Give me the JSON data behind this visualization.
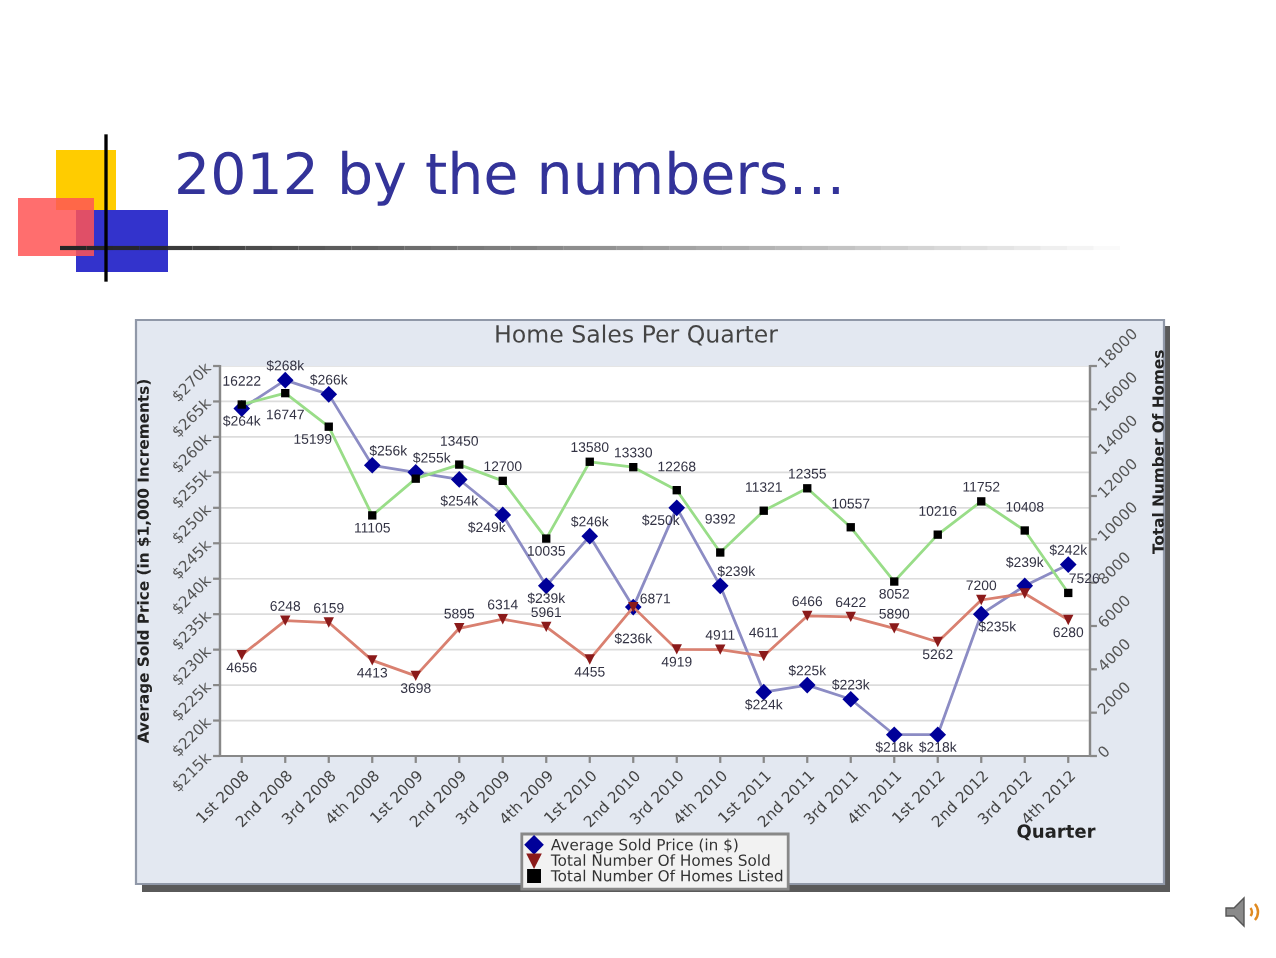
{
  "chart_data": {
    "type": "line",
    "title": "2012 by the numbers…",
    "subtitle": "Home Sales Per Quarter",
    "xlabel": "Quarter",
    "ylabel": "Average Sold Price (in $1,000 Increments)",
    "y2label": "Total Number Of Homes",
    "categories": [
      "1st 2008",
      "2nd 2008",
      "3rd 2008",
      "4th 2008",
      "1st 2009",
      "2nd 2009",
      "3rd 2009",
      "4th 2009",
      "1st 2010",
      "2nd 2010",
      "3rd 2010",
      "4th 2010",
      "1st 2011",
      "2nd 2011",
      "3rd 2011",
      "4th 2011",
      "1st 2012",
      "2nd 2012",
      "3rd 2012",
      "4th 2012"
    ],
    "series": [
      {
        "name": "Average Sold Price (in $)",
        "color": "#8c8cc4",
        "colors": [
          "#000099",
          "#000099",
          "#000099",
          "#000099",
          "#000099",
          "#000099",
          "#000099",
          "#000099",
          "#000099",
          "#000099",
          "#000099",
          "#000099",
          "#000099",
          "#000099",
          "#000099",
          "#000099",
          "#000099",
          "#000099",
          "#000099",
          "#000099"
        ],
        "marker": "diamond",
        "values": [
          264,
          268,
          266,
          256,
          255,
          254,
          249,
          239,
          246,
          236,
          250,
          239,
          224,
          225,
          223,
          218,
          218,
          235,
          239,
          242
        ],
        "value_labels": [
          "$264k",
          "$268k",
          "$266k",
          "$256k",
          "$255k",
          "$254k",
          "$249k",
          "$239k",
          "$246k",
          "$236k",
          "$250k",
          "$239k",
          "$224k",
          "$225k",
          "$223k",
          "$218k",
          "$218k",
          "$235k",
          "$239k",
          "$242k"
        ]
      },
      {
        "name": "Total Number Of Homes Sold",
        "axis": "y2",
        "color": "#d98070",
        "colors": [
          "#8b1a1a",
          "#8b1a1a",
          "#8b1a1a",
          "#8b1a1a",
          "#8b1a1a",
          "#8b1a1a",
          "#8b1a1a",
          "#8b1a1a",
          "#8b1a1a",
          "#8b1a1a",
          "#8b1a1a",
          "#8b1a1a",
          "#8b1a1a",
          "#8b1a1a",
          "#8b1a1a",
          "#8b1a1a",
          "#8b1a1a",
          "#8b1a1a",
          "#8b1a1a",
          "#8b1a1a"
        ],
        "marker": "triangle",
        "values": [
          4656,
          6248,
          6159,
          4413,
          3698,
          5895,
          6314,
          5961,
          4455,
          6871,
          4919,
          4911,
          4611,
          6466,
          6422,
          5890,
          5262,
          7200,
          7500,
          6280
        ],
        "value_labels": [
          "4656",
          "6248",
          "6159",
          "4413",
          "3698",
          "5895",
          "6314",
          "5961",
          "4455",
          "6871",
          "4919",
          "4911",
          "4611",
          "6466",
          "6422",
          "5890",
          "5262",
          "7200",
          null,
          "6280"
        ]
      },
      {
        "name": "Total Number Of Homes Listed",
        "axis": "y2",
        "color": "#99dd88",
        "colors": [
          "#000000",
          "#000000",
          "#000000",
          "#000000",
          "#000000",
          "#000000",
          "#000000",
          "#000000",
          "#000000",
          "#000000",
          "#000000",
          "#000000",
          "#000000",
          "#000000",
          "#000000",
          "#000000",
          "#000000",
          "#000000",
          "#000000",
          "#000000"
        ],
        "marker": "square",
        "values": [
          16222,
          16747,
          15199,
          11105,
          12800,
          13450,
          12700,
          10035,
          13580,
          13330,
          12268,
          9392,
          11321,
          12355,
          10557,
          8052,
          10216,
          11752,
          10408,
          7526
        ],
        "value_labels": [
          "16222",
          "16747",
          "15199",
          "11105",
          null,
          "13450",
          "12700",
          "10035",
          "13580",
          "13330",
          "12268",
          "9392",
          "11321",
          "12355",
          "10557",
          "8052",
          "10216",
          "11752",
          "10408",
          "7526"
        ]
      }
    ],
    "ylim": [
      215,
      270
    ],
    "yticks": [
      {
        "value": 215,
        "label": "$215k"
      },
      {
        "value": 220,
        "label": "$220k"
      },
      {
        "value": 225,
        "label": "$225k"
      },
      {
        "value": 230,
        "label": "$230k"
      },
      {
        "value": 235,
        "label": "$235k"
      },
      {
        "value": 240,
        "label": "$240k"
      },
      {
        "value": 245,
        "label": "$245k"
      },
      {
        "value": 250,
        "label": "$250k"
      },
      {
        "value": 255,
        "label": "$255k"
      },
      {
        "value": 260,
        "label": "$260k"
      },
      {
        "value": 265,
        "label": "$265k"
      },
      {
        "value": 270,
        "label": "$270k"
      }
    ],
    "y2lim": [
      0,
      18000
    ],
    "y2ticks": [
      0,
      2000,
      4000,
      6000,
      8000,
      10000,
      12000,
      14000,
      16000,
      18000
    ],
    "grid": "y",
    "legend": "bottom"
  }
}
